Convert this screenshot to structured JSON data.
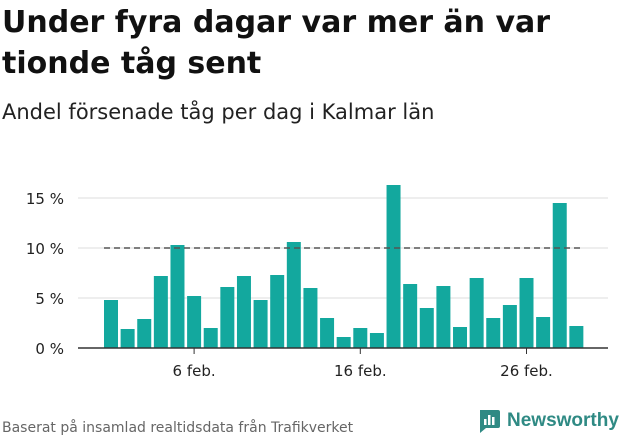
{
  "title": "Under fyra dagar var mer än var tionde tåg sent",
  "subtitle": "Andel försenade tåg per dag i Kalmar län",
  "footer": "Baserat på insamlad realtidsdata från Trafikverket",
  "brand": "Newsworthy",
  "colors": {
    "bar": "#13a89e",
    "grid": "#dddddd",
    "reference": "#555555",
    "brand": "#2f8a84"
  },
  "chart_data": {
    "type": "bar",
    "y_ticks": [
      "0 %",
      "5 %",
      "10 %",
      "15 %"
    ],
    "x_ticks": [
      {
        "label": "6 feb.",
        "index": 5
      },
      {
        "label": "16 feb.",
        "index": 15
      },
      {
        "label": "26 feb.",
        "index": 25
      }
    ],
    "x_start": "1 feb.",
    "values": [
      4.8,
      1.9,
      2.9,
      7.2,
      10.3,
      5.2,
      2.0,
      6.1,
      7.2,
      4.8,
      7.3,
      10.6,
      6.0,
      3.0,
      1.1,
      2.0,
      1.5,
      16.3,
      6.4,
      4.0,
      6.2,
      2.1,
      7.0,
      3.0,
      4.3,
      7.0,
      3.1,
      14.5,
      2.2
    ],
    "reference_line": 10,
    "ylim": [
      0,
      17
    ],
    "grid": true
  }
}
